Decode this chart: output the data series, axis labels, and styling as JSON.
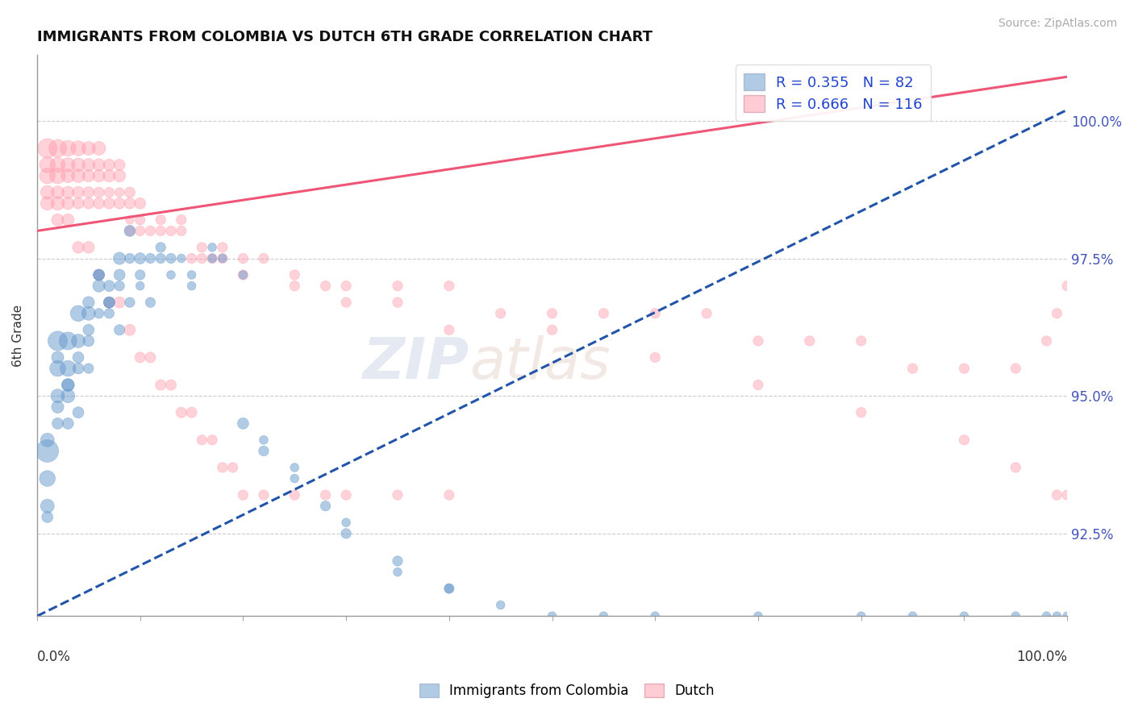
{
  "title": "IMMIGRANTS FROM COLOMBIA VS DUTCH 6TH GRADE CORRELATION CHART",
  "source_text": "Source: ZipAtlas.com",
  "ylabel": "6th Grade",
  "xlim": [
    0.0,
    100.0
  ],
  "ylim": [
    91.0,
    101.2
  ],
  "blue_R": 0.355,
  "blue_N": 82,
  "pink_R": 0.666,
  "pink_N": 116,
  "blue_color": "#6699cc",
  "pink_color": "#ff99aa",
  "blue_line_color": "#2255aa",
  "pink_line_color": "#ee5577",
  "watermark_zip": "ZIP",
  "watermark_atlas": "atlas",
  "background_color": "#ffffff",
  "grid_color": "#cccccc",
  "y_tick_vals": [
    92.5,
    95.0,
    97.5,
    100.0
  ],
  "blue_line": {
    "x0": 0,
    "x1": 100,
    "y0": 91.0,
    "y1": 100.2
  },
  "pink_line": {
    "x0": 0,
    "x1": 100,
    "y0": 98.0,
    "y1": 100.8
  },
  "blue_x": [
    1,
    1,
    1,
    1,
    2,
    2,
    2,
    2,
    3,
    3,
    3,
    3,
    4,
    4,
    4,
    5,
    5,
    5,
    6,
    6,
    7,
    7,
    8,
    8,
    9,
    9,
    10,
    10,
    11,
    12,
    13,
    14,
    15,
    17,
    18,
    20,
    22,
    25,
    28,
    30,
    35,
    40,
    2,
    3,
    4,
    5,
    6,
    7,
    8,
    9,
    10,
    11,
    12,
    13,
    15,
    17,
    20,
    22,
    25,
    30,
    35,
    40,
    45,
    50,
    55,
    60,
    70,
    80,
    85,
    90,
    95,
    98,
    99,
    100,
    1,
    2,
    3,
    4,
    5,
    6,
    7,
    8
  ],
  "blue_y": [
    94,
    93.5,
    93,
    92.8,
    96,
    95.5,
    95,
    94.5,
    96,
    95.5,
    95,
    94.5,
    96.5,
    96,
    95.5,
    96.5,
    96,
    95.5,
    97,
    96.5,
    97,
    96.5,
    97.5,
    97,
    98,
    97.5,
    97.5,
    97,
    97.5,
    97.5,
    97.5,
    97.5,
    97,
    97.5,
    97.5,
    94.5,
    94,
    93.5,
    93,
    92.5,
    92,
    91.5,
    94.8,
    95.2,
    95.7,
    96.2,
    97.2,
    96.7,
    97.2,
    96.7,
    97.2,
    96.7,
    97.7,
    97.2,
    97.2,
    97.7,
    97.2,
    94.2,
    93.7,
    92.7,
    91.8,
    91.5,
    91.2,
    91.0,
    91.0,
    91.0,
    91.0,
    91.0,
    91.0,
    91.0,
    91.0,
    91.0,
    91.0,
    91.0,
    94.2,
    95.7,
    95.2,
    94.7,
    96.7,
    97.2,
    96.7,
    96.2
  ],
  "blue_s": [
    400,
    200,
    150,
    100,
    300,
    200,
    150,
    100,
    250,
    200,
    150,
    100,
    200,
    150,
    100,
    150,
    100,
    80,
    120,
    80,
    100,
    80,
    120,
    80,
    100,
    80,
    100,
    60,
    80,
    80,
    80,
    60,
    60,
    60,
    60,
    100,
    80,
    60,
    80,
    80,
    80,
    80,
    120,
    120,
    100,
    100,
    100,
    100,
    100,
    80,
    80,
    80,
    80,
    60,
    60,
    60,
    60,
    60,
    60,
    60,
    60,
    60,
    60,
    60,
    60,
    60,
    60,
    60,
    60,
    60,
    60,
    60,
    60,
    60,
    150,
    120,
    130,
    100,
    110,
    100,
    100,
    90,
    0
  ],
  "pink_x": [
    1,
    1,
    1,
    2,
    2,
    2,
    3,
    3,
    3,
    4,
    4,
    4,
    5,
    5,
    5,
    6,
    6,
    6,
    7,
    7,
    8,
    8,
    9,
    9,
    10,
    10,
    11,
    12,
    13,
    14,
    15,
    16,
    17,
    18,
    20,
    22,
    25,
    28,
    30,
    35,
    40,
    45,
    50,
    55,
    60,
    65,
    70,
    75,
    80,
    85,
    90,
    95,
    98,
    99,
    100,
    1,
    1,
    2,
    2,
    3,
    3,
    4,
    4,
    5,
    5,
    6,
    6,
    7,
    7,
    8,
    8,
    9,
    9,
    10,
    12,
    14,
    16,
    18,
    20,
    25,
    30,
    35,
    40,
    50,
    60,
    70,
    80,
    90,
    95,
    99,
    100,
    2,
    3,
    4,
    5,
    6,
    7,
    8,
    9,
    10,
    11,
    12,
    13,
    14,
    15,
    16,
    17,
    18,
    19,
    20,
    22,
    25,
    28,
    30,
    35,
    40,
    45
  ],
  "pink_y": [
    99.5,
    99,
    98.5,
    99.5,
    99,
    98.5,
    99.5,
    99,
    98.5,
    99.5,
    99,
    98.5,
    99.5,
    99,
    98.5,
    99.5,
    99,
    98.5,
    99,
    98.5,
    99,
    98.5,
    98.5,
    98,
    98.5,
    98,
    98,
    98,
    98,
    98,
    97.5,
    97.5,
    97.5,
    97.5,
    97.5,
    97.5,
    97,
    97,
    97,
    97,
    97,
    96.5,
    96.5,
    96.5,
    96.5,
    96.5,
    96,
    96,
    96,
    95.5,
    95.5,
    95.5,
    96,
    96.5,
    97,
    99.2,
    98.7,
    99.2,
    98.7,
    99.2,
    98.7,
    99.2,
    98.7,
    99.2,
    98.7,
    99.2,
    98.7,
    99.2,
    98.7,
    99.2,
    98.7,
    98.7,
    98.2,
    98.2,
    98.2,
    98.2,
    97.7,
    97.7,
    97.2,
    97.2,
    96.7,
    96.7,
    96.2,
    96.2,
    95.7,
    95.2,
    94.7,
    94.2,
    93.7,
    93.2,
    93.2,
    98.2,
    98.2,
    97.7,
    97.7,
    97.2,
    96.7,
    96.7,
    96.2,
    95.7,
    95.7,
    95.2,
    95.2,
    94.7,
    94.7,
    94.2,
    94.2,
    93.7,
    93.7,
    93.2,
    93.2,
    93.2,
    93.2,
    93.2,
    93.2,
    93.2
  ],
  "pink_s": [
    300,
    200,
    150,
    250,
    200,
    150,
    200,
    150,
    120,
    180,
    150,
    100,
    150,
    120,
    100,
    150,
    120,
    100,
    120,
    100,
    120,
    100,
    100,
    80,
    100,
    80,
    80,
    80,
    80,
    80,
    80,
    80,
    80,
    80,
    80,
    80,
    80,
    80,
    80,
    80,
    80,
    80,
    80,
    80,
    80,
    80,
    80,
    80,
    80,
    80,
    80,
    80,
    80,
    80,
    80,
    200,
    150,
    180,
    130,
    160,
    120,
    150,
    110,
    130,
    100,
    120,
    90,
    110,
    80,
    100,
    70,
    90,
    60,
    80,
    80,
    80,
    80,
    80,
    80,
    80,
    80,
    80,
    80,
    80,
    80,
    80,
    80,
    80,
    80,
    80,
    80,
    120,
    120,
    110,
    110,
    100,
    100,
    100,
    100,
    90,
    90,
    90,
    90,
    90,
    90,
    80,
    80,
    80,
    80,
    80,
    80,
    80,
    80,
    80,
    80,
    80,
    80
  ]
}
